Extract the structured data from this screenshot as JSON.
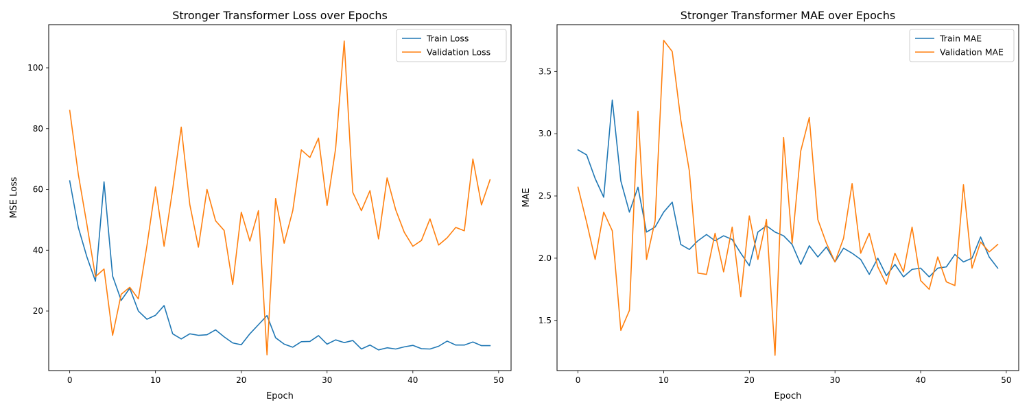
{
  "colors": {
    "train": "#1f77b4",
    "validation": "#ff7f0e"
  },
  "chart_data": [
    {
      "type": "line",
      "title": "Stronger Transformer Loss over Epochs",
      "xlabel": "Epoch",
      "ylabel": "MSE Loss",
      "xlim": [
        -2.45,
        51.45
      ],
      "ylim": [
        0.4,
        114.2
      ],
      "xticks": [
        0,
        10,
        20,
        30,
        40,
        50
      ],
      "yticks": [
        20,
        40,
        60,
        80,
        100
      ],
      "grid": false,
      "legend": "top-right",
      "x": [
        0,
        1,
        2,
        3,
        4,
        5,
        6,
        7,
        8,
        9,
        10,
        11,
        12,
        13,
        14,
        15,
        16,
        17,
        18,
        19,
        20,
        21,
        22,
        23,
        24,
        25,
        26,
        27,
        28,
        29,
        30,
        31,
        32,
        33,
        34,
        35,
        36,
        37,
        38,
        39,
        40,
        41,
        42,
        43,
        44,
        45,
        46,
        47,
        48,
        49
      ],
      "series": [
        {
          "name": "Train Loss",
          "color": "#1f77b4",
          "values": [
            62.8,
            47.5,
            37.8,
            29.8,
            62.5,
            31.5,
            23.5,
            27.5,
            20.0,
            17.3,
            18.6,
            21.8,
            12.5,
            10.8,
            12.5,
            12.0,
            12.2,
            13.8,
            11.5,
            9.5,
            8.9,
            12.5,
            15.5,
            18.5,
            11.2,
            9.1,
            8.1,
            9.9,
            10.0,
            11.9,
            9.1,
            10.5,
            9.6,
            10.3,
            7.5,
            8.8,
            7.2,
            7.9,
            7.5,
            8.2,
            8.7,
            7.6,
            7.5,
            8.4,
            10.1,
            8.8,
            8.8,
            9.8,
            8.6,
            8.6
          ]
        },
        {
          "name": "Validation Loss",
          "color": "#ff7f0e",
          "values": [
            86.0,
            65.0,
            48.5,
            31.3,
            33.8,
            12.0,
            25.5,
            27.8,
            24.0,
            41.5,
            60.8,
            41.3,
            60.0,
            80.5,
            55.0,
            41.0,
            60.0,
            49.7,
            46.5,
            28.7,
            52.5,
            43.0,
            53.0,
            5.6,
            57.0,
            42.3,
            53.0,
            73.0,
            70.5,
            76.9,
            54.7,
            73.5,
            108.8,
            59.0,
            53.0,
            59.6,
            43.7,
            63.8,
            53.3,
            45.9,
            41.3,
            43.2,
            50.3,
            41.7,
            44.1,
            47.5,
            46.4,
            70.0,
            54.9,
            63.2
          ]
        }
      ]
    },
    {
      "type": "line",
      "title": "Stronger Transformer MAE over Epochs",
      "xlabel": "Epoch",
      "ylabel": "MAE",
      "xlim": [
        -2.45,
        51.45
      ],
      "ylim": [
        1.097,
        3.876
      ],
      "xticks": [
        0,
        10,
        20,
        30,
        40,
        50
      ],
      "yticks": [
        1.5,
        2.0,
        2.5,
        3.0,
        3.5
      ],
      "yticklabels": [
        "1.5",
        "2.0",
        "2.5",
        "3.0",
        "3.5"
      ],
      "grid": false,
      "legend": "top-right",
      "x": [
        0,
        1,
        2,
        3,
        4,
        5,
        6,
        7,
        8,
        9,
        10,
        11,
        12,
        13,
        14,
        15,
        16,
        17,
        18,
        19,
        20,
        21,
        22,
        23,
        24,
        25,
        26,
        27,
        28,
        29,
        30,
        31,
        32,
        33,
        34,
        35,
        36,
        37,
        38,
        39,
        40,
        41,
        42,
        43,
        44,
        45,
        46,
        47,
        48,
        49
      ],
      "series": [
        {
          "name": "Train MAE",
          "color": "#1f77b4",
          "values": [
            2.87,
            2.83,
            2.64,
            2.49,
            3.27,
            2.62,
            2.37,
            2.57,
            2.21,
            2.25,
            2.37,
            2.45,
            2.11,
            2.07,
            2.14,
            2.19,
            2.14,
            2.18,
            2.15,
            2.04,
            1.94,
            2.21,
            2.26,
            2.21,
            2.18,
            2.11,
            1.95,
            2.1,
            2.01,
            2.09,
            1.97,
            2.08,
            2.04,
            1.99,
            1.87,
            2.0,
            1.86,
            1.95,
            1.85,
            1.91,
            1.92,
            1.85,
            1.92,
            1.93,
            2.03,
            1.97,
            2.0,
            2.17,
            2.01,
            1.92
          ]
        },
        {
          "name": "Validation MAE",
          "color": "#ff7f0e",
          "values": [
            2.57,
            2.29,
            1.99,
            2.37,
            2.22,
            1.42,
            1.58,
            3.18,
            1.99,
            2.3,
            3.75,
            3.66,
            3.11,
            2.7,
            1.88,
            1.87,
            2.2,
            1.89,
            2.25,
            1.69,
            2.34,
            1.99,
            2.31,
            1.22,
            2.97,
            2.12,
            2.86,
            3.13,
            2.31,
            2.12,
            1.97,
            2.16,
            2.6,
            2.04,
            2.2,
            1.93,
            1.79,
            2.04,
            1.89,
            2.25,
            1.82,
            1.75,
            2.01,
            1.81,
            1.78,
            2.59,
            1.92,
            2.13,
            2.05,
            2.11
          ]
        }
      ]
    }
  ]
}
